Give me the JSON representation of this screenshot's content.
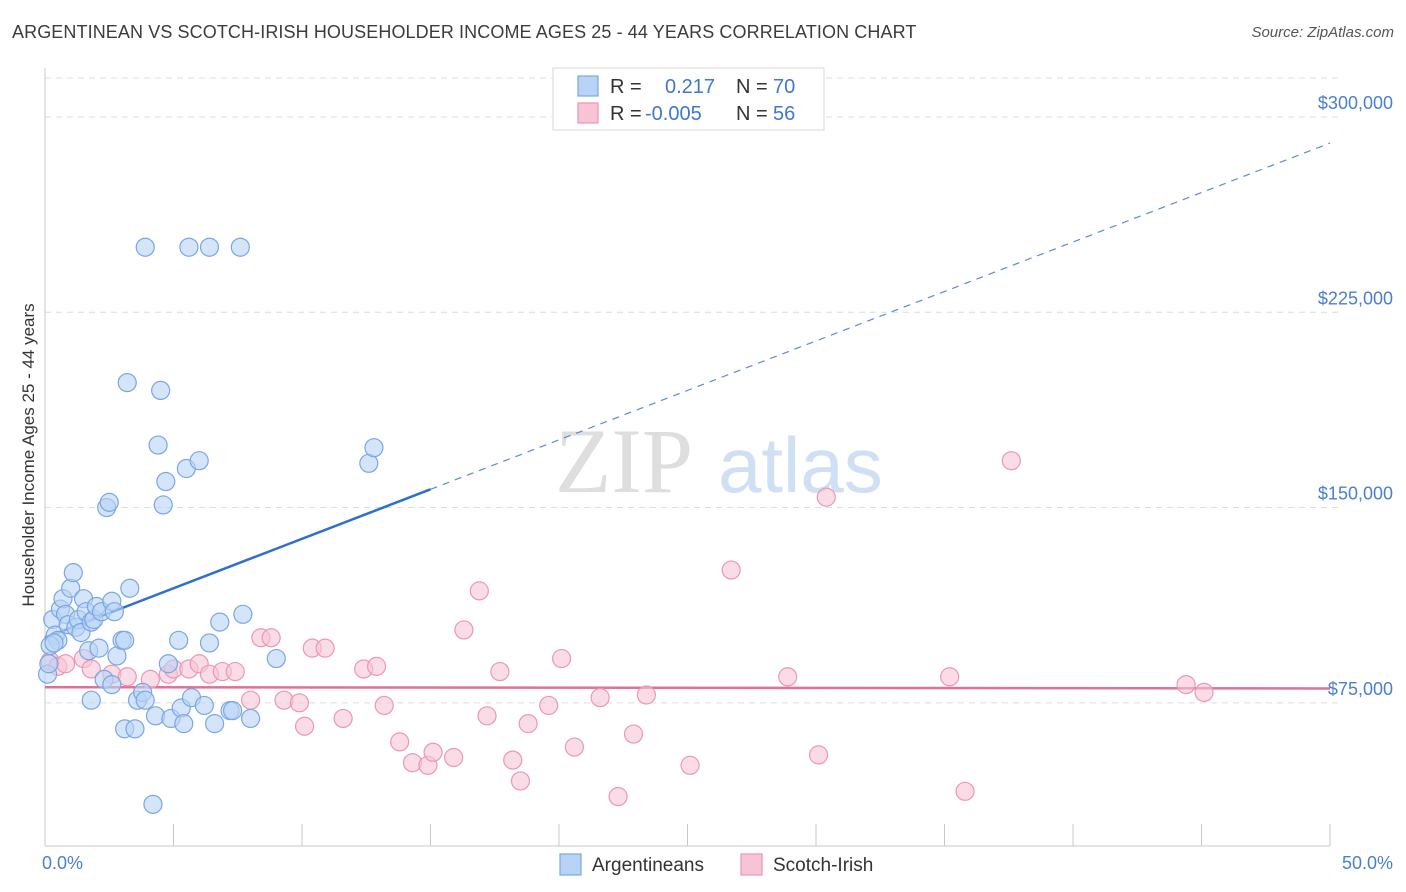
{
  "title": "ARGENTINEAN VS SCOTCH-IRISH HOUSEHOLDER INCOME AGES 25 - 44 YEARS CORRELATION CHART",
  "source": "Source: ZipAtlas.com",
  "watermark": {
    "zip": "ZIP",
    "atlas": "atlas"
  },
  "colors": {
    "blue_fill": "#b9d3f5",
    "blue_stroke": "#7aa6e4",
    "blue_line": "#2f6fd0",
    "pink_fill": "#f7c4d6",
    "pink_stroke": "#eb97b6",
    "pink_line": "#e0709a",
    "tick_text": "#4a7fd0",
    "grid": "#dcdcdc"
  },
  "legend": {
    "rows": [
      {
        "r_label": "R =",
        "r_value": "0.217",
        "n_label": "N =",
        "n_value": "70",
        "series": "Argentineans"
      },
      {
        "r_label": "R =",
        "r_value": "-0.005",
        "n_label": "N =",
        "n_value": "56",
        "series": "Scotch-Irish"
      }
    ]
  },
  "chart_data": {
    "type": "scatter",
    "title": "ARGENTINEAN VS SCOTCH-IRISH HOUSEHOLDER INCOME AGES 25 - 44 YEARS CORRELATION CHART",
    "xlabel": "",
    "ylabel": "Householder Income Ages 25 - 44 years",
    "xlim": [
      0,
      50
    ],
    "ylim": [
      20000,
      315000
    ],
    "x_tick_labels": [
      "0.0%",
      "50.0%"
    ],
    "y_ticks": [
      75000,
      150000,
      225000,
      300000
    ],
    "y_tick_labels": [
      "$75,000",
      "$150,000",
      "$225,000",
      "$300,000"
    ],
    "grid": true,
    "legend_position": "bottom-center",
    "series": [
      {
        "name": "Argentineans",
        "color": "#b9d3f5",
        "trend": {
          "x0": 0,
          "y0": 100000,
          "x1": 15,
          "y1": 157000,
          "dashed_to_x": 50,
          "dashed_to_y": 290000
        },
        "points": [
          [
            0.3,
            107000
          ],
          [
            0.4,
            101000
          ],
          [
            0.5,
            99000
          ],
          [
            0.2,
            97000
          ],
          [
            0.6,
            111000
          ],
          [
            0.7,
            115000
          ],
          [
            0.8,
            109000
          ],
          [
            0.9,
            105000
          ],
          [
            1.0,
            119000
          ],
          [
            1.1,
            125000
          ],
          [
            1.2,
            104000
          ],
          [
            1.3,
            107000
          ],
          [
            1.4,
            102000
          ],
          [
            1.5,
            115000
          ],
          [
            1.6,
            110000
          ],
          [
            1.7,
            95000
          ],
          [
            1.8,
            106000
          ],
          [
            1.9,
            107000
          ],
          [
            2.0,
            112000
          ],
          [
            2.1,
            96000
          ],
          [
            2.2,
            110000
          ],
          [
            2.4,
            150000
          ],
          [
            2.5,
            152000
          ],
          [
            2.6,
            114000
          ],
          [
            2.7,
            110000
          ],
          [
            2.8,
            93000
          ],
          [
            3.0,
            99000
          ],
          [
            3.1,
            99000
          ],
          [
            3.3,
            119000
          ],
          [
            3.2,
            198000
          ],
          [
            3.9,
            250000
          ],
          [
            4.4,
            174000
          ],
          [
            4.5,
            195000
          ],
          [
            4.6,
            151000
          ],
          [
            4.7,
            160000
          ],
          [
            5.6,
            250000
          ],
          [
            6.4,
            250000
          ],
          [
            7.6,
            250000
          ],
          [
            5.5,
            165000
          ],
          [
            6.0,
            168000
          ],
          [
            2.3,
            84000
          ],
          [
            2.6,
            82000
          ],
          [
            1.8,
            76000
          ],
          [
            3.1,
            65000
          ],
          [
            3.5,
            65000
          ],
          [
            3.6,
            76000
          ],
          [
            3.8,
            79000
          ],
          [
            3.9,
            76000
          ],
          [
            4.3,
            70000
          ],
          [
            4.8,
            90000
          ],
          [
            4.9,
            69000
          ],
          [
            5.2,
            99000
          ],
          [
            5.3,
            73000
          ],
          [
            5.4,
            67000
          ],
          [
            5.7,
            77000
          ],
          [
            6.2,
            74000
          ],
          [
            6.6,
            67000
          ],
          [
            6.8,
            106000
          ],
          [
            6.4,
            98000
          ],
          [
            7.2,
            72000
          ],
          [
            7.3,
            72000
          ],
          [
            7.7,
            109000
          ],
          [
            8.0,
            69000
          ],
          [
            9.0,
            92000
          ],
          [
            12.6,
            167000
          ],
          [
            12.8,
            173000
          ],
          [
            4.2,
            36000
          ],
          [
            0.1,
            86000
          ],
          [
            0.15,
            90000
          ],
          [
            0.35,
            98000
          ]
        ]
      },
      {
        "name": "Scotch-Irish",
        "color": "#f7c4d6",
        "trend": {
          "x0": 0,
          "y0": 81000,
          "x1": 50,
          "y1": 80500
        },
        "points": [
          [
            0.2,
            91000
          ],
          [
            0.5,
            89000
          ],
          [
            0.8,
            90000
          ],
          [
            1.5,
            92000
          ],
          [
            1.8,
            88000
          ],
          [
            2.6,
            86000
          ],
          [
            3.2,
            85000
          ],
          [
            4.1,
            84000
          ],
          [
            4.8,
            86000
          ],
          [
            5.0,
            88000
          ],
          [
            5.6,
            88000
          ],
          [
            6.0,
            90000
          ],
          [
            6.4,
            86000
          ],
          [
            6.9,
            87000
          ],
          [
            7.4,
            87000
          ],
          [
            8.0,
            76000
          ],
          [
            8.4,
            100000
          ],
          [
            8.8,
            100000
          ],
          [
            9.3,
            76000
          ],
          [
            9.9,
            75000
          ],
          [
            10.1,
            66000
          ],
          [
            10.4,
            96000
          ],
          [
            10.9,
            96000
          ],
          [
            11.6,
            69000
          ],
          [
            12.4,
            88000
          ],
          [
            12.9,
            89000
          ],
          [
            13.2,
            74000
          ],
          [
            13.8,
            60000
          ],
          [
            14.3,
            52000
          ],
          [
            14.9,
            51000
          ],
          [
            15.1,
            56000
          ],
          [
            15.9,
            54000
          ],
          [
            16.3,
            103000
          ],
          [
            16.9,
            118000
          ],
          [
            17.2,
            70000
          ],
          [
            17.7,
            87000
          ],
          [
            18.2,
            53000
          ],
          [
            18.5,
            45000
          ],
          [
            18.8,
            67000
          ],
          [
            19.6,
            74000
          ],
          [
            20.1,
            92000
          ],
          [
            20.6,
            58000
          ],
          [
            21.6,
            77000
          ],
          [
            22.3,
            39000
          ],
          [
            22.9,
            63000
          ],
          [
            23.4,
            78000
          ],
          [
            25.1,
            51000
          ],
          [
            26.7,
            126000
          ],
          [
            28.9,
            85000
          ],
          [
            30.1,
            55000
          ],
          [
            30.4,
            154000
          ],
          [
            35.2,
            85000
          ],
          [
            35.8,
            41000
          ],
          [
            37.6,
            168000
          ],
          [
            44.4,
            82000
          ],
          [
            45.1,
            79000
          ]
        ]
      }
    ]
  }
}
